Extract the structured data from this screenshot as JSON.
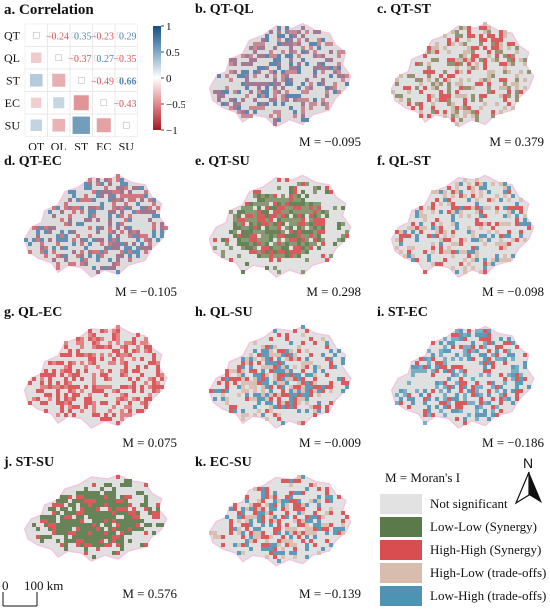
{
  "figure_panels": {
    "a": {
      "title": "a. Correlation"
    },
    "b": {
      "title": "b. QT-QL",
      "moran": "M = −0.095"
    },
    "c": {
      "title": "c. QT-ST",
      "moran": "M = 0.379"
    },
    "d": {
      "title": "d. QT-EC",
      "moran": "M = −0.105"
    },
    "e": {
      "title": "e. QT-SU",
      "moran": "M = 0.298"
    },
    "f": {
      "title": "f. QL-ST",
      "moran": "M = −0.098"
    },
    "g": {
      "title": "g. QL-EC",
      "moran": "M = 0.075"
    },
    "h": {
      "title": "h. QL-SU",
      "moran": "M = −0.009"
    },
    "i": {
      "title": "i. ST-EC",
      "moran": "M = −0.186"
    },
    "j": {
      "title": "j. ST-SU",
      "moran": "M = 0.576"
    },
    "k": {
      "title": "k. EC-SU",
      "moran": "M = −0.139"
    }
  },
  "correlation": {
    "variables": [
      "QT",
      "QL",
      "ST",
      "EC",
      "SU"
    ],
    "upper_values": [
      [
        "",
        "−0.24",
        "0.35",
        "−0.23",
        "0.29"
      ],
      [
        "",
        "",
        "−0.37",
        "0.27",
        "−0.35"
      ],
      [
        "",
        "",
        "",
        "−0.49",
        "0.66"
      ],
      [
        "",
        "",
        "",
        "",
        "−0.43"
      ],
      [
        "",
        "",
        "",
        "",
        ""
      ]
    ],
    "matrix": [
      [
        1,
        -0.24,
        0.35,
        -0.23,
        0.29
      ],
      [
        -0.24,
        1,
        -0.37,
        0.27,
        -0.35
      ],
      [
        0.35,
        -0.37,
        1,
        -0.49,
        0.66
      ],
      [
        -0.23,
        0.27,
        -0.49,
        1,
        -0.43
      ],
      [
        0.29,
        -0.35,
        0.66,
        -0.43,
        1
      ]
    ],
    "colorbar_ticks": [
      "1",
      "0.5",
      "0",
      "−0.5",
      "−1"
    ],
    "colors": {
      "positive": "#2b6a99",
      "negative": "#c0272d",
      "neutral": "#ffffff"
    }
  },
  "legend": {
    "title": "M = Moran's I",
    "items": [
      {
        "label": "Not significant",
        "color": "#e2e2e2"
      },
      {
        "label": "Low-Low (Synergy)",
        "color": "#5a7a4a"
      },
      {
        "label": "High-High (Synergy)",
        "color": "#d94c4f"
      },
      {
        "label": "High-Low (trade-offs)",
        "color": "#d8bcae"
      },
      {
        "label": "Low-High (trade-offs)",
        "color": "#4f93b4"
      }
    ]
  },
  "north_label": "N",
  "scale": {
    "zero": "0",
    "distance": "100 km"
  },
  "map_colors": {
    "b": {
      "base": "#dcdcdc",
      "mix": [
        "#9c6f8c",
        "#4f7ea6",
        "#c4808a"
      ]
    },
    "c": {
      "base": "#e0e0e0",
      "mix": [
        "#8f8a68",
        "#d94c4f",
        "#cdb9a8"
      ]
    },
    "d": {
      "base": "#dcdcdc",
      "mix": [
        "#9a6a86",
        "#4f8ab0",
        "#d06a74"
      ]
    },
    "e": {
      "base": "#e1e1e1",
      "mix": [
        "#5a7a4a",
        "#d94c4f",
        "#7e9167"
      ]
    },
    "f": {
      "base": "#e0e0e0",
      "mix": [
        "#d8bcae",
        "#d94c4f",
        "#4f93b4"
      ]
    },
    "g": {
      "base": "#e0e0e0",
      "mix": [
        "#d94c4f",
        "#e07a7c",
        "#d94c4f"
      ]
    },
    "h": {
      "base": "#e1e1e1",
      "mix": [
        "#d8bcae",
        "#4f93b4",
        "#d94c4f"
      ]
    },
    "i": {
      "base": "#e0e0e0",
      "mix": [
        "#4f93b4",
        "#d94c4f",
        "#6fa8c4"
      ]
    },
    "j": {
      "base": "#e0e0e0",
      "mix": [
        "#5a7a4a",
        "#d94c4f",
        "#5a7a4a"
      ]
    },
    "k": {
      "base": "#e1e1e1",
      "mix": [
        "#d8bcae",
        "#4f93b4",
        "#d94c4f"
      ]
    }
  }
}
